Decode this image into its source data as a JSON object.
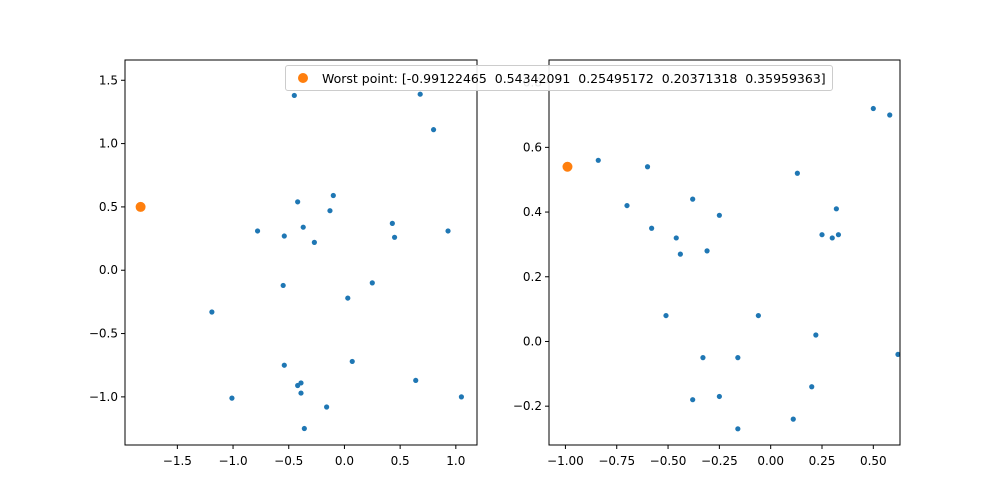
{
  "chart_data": [
    {
      "type": "scatter",
      "title": "",
      "xlabel": "",
      "ylabel": "",
      "xlim": [
        -1.97,
        1.19
      ],
      "ylim": [
        -1.38,
        1.66
      ],
      "xticks": [
        -1.5,
        -1.0,
        -0.5,
        0.0,
        0.5,
        1.0
      ],
      "xtick_labels": [
        "−1.5",
        "−1.0",
        "−0.5",
        "0.0",
        "0.5",
        "1.0"
      ],
      "yticks": [
        -1.0,
        -0.5,
        0.0,
        0.5,
        1.0,
        1.5
      ],
      "ytick_labels": [
        "−1.0",
        "−0.5",
        "0.0",
        "0.5",
        "1.0",
        "1.5"
      ],
      "grid": false,
      "series": [
        {
          "color": "#1f77b4",
          "marker_size": "small",
          "points": [
            [
              -0.45,
              1.38
            ],
            [
              0.68,
              1.39
            ],
            [
              0.8,
              1.11
            ],
            [
              -0.1,
              0.59
            ],
            [
              -0.42,
              0.54
            ],
            [
              -0.13,
              0.47
            ],
            [
              -0.37,
              0.34
            ],
            [
              -0.78,
              0.31
            ],
            [
              -0.54,
              0.27
            ],
            [
              -0.27,
              0.22
            ],
            [
              0.43,
              0.37
            ],
            [
              0.45,
              0.26
            ],
            [
              0.93,
              0.31
            ],
            [
              -0.55,
              -0.12
            ],
            [
              0.03,
              -0.22
            ],
            [
              0.25,
              -0.1
            ],
            [
              -1.19,
              -0.33
            ],
            [
              0.07,
              -0.72
            ],
            [
              -0.54,
              -0.75
            ],
            [
              -0.42,
              -0.91
            ],
            [
              -0.39,
              -0.89
            ],
            [
              -0.39,
              -0.97
            ],
            [
              0.64,
              -0.87
            ],
            [
              -1.01,
              -1.01
            ],
            [
              1.05,
              -1.0
            ],
            [
              -0.16,
              -1.08
            ],
            [
              -0.36,
              -1.25
            ]
          ]
        },
        {
          "color": "#ff7f0e",
          "marker_size": "large",
          "points": [
            [
              -1.83,
              0.5
            ]
          ]
        }
      ]
    },
    {
      "type": "scatter",
      "title": "",
      "xlabel": "",
      "ylabel": "",
      "xlim": [
        -1.08,
        0.63
      ],
      "ylim": [
        -0.32,
        0.87
      ],
      "xticks": [
        -1.0,
        -0.75,
        -0.5,
        -0.25,
        0.0,
        0.25,
        0.5
      ],
      "xtick_labels": [
        "−1.00",
        "−0.75",
        "−0.50",
        "−0.25",
        "0.00",
        "0.25",
        "0.50"
      ],
      "yticks": [
        -0.2,
        0.0,
        0.2,
        0.4,
        0.6,
        0.8
      ],
      "ytick_labels": [
        "−0.2",
        "0.0",
        "0.2",
        "0.4",
        "0.6",
        "0.8"
      ],
      "grid": false,
      "series": [
        {
          "color": "#1f77b4",
          "marker_size": "small",
          "points": [
            [
              0.5,
              0.72
            ],
            [
              0.58,
              0.7
            ],
            [
              -0.84,
              0.56
            ],
            [
              -0.6,
              0.54
            ],
            [
              0.13,
              0.52
            ],
            [
              -0.7,
              0.42
            ],
            [
              -0.38,
              0.44
            ],
            [
              0.32,
              0.41
            ],
            [
              -0.25,
              0.39
            ],
            [
              -0.58,
              0.35
            ],
            [
              -0.46,
              0.32
            ],
            [
              0.25,
              0.33
            ],
            [
              0.3,
              0.32
            ],
            [
              0.33,
              0.33
            ],
            [
              -0.44,
              0.27
            ],
            [
              -0.31,
              0.28
            ],
            [
              -0.51,
              0.08
            ],
            [
              -0.06,
              0.08
            ],
            [
              0.22,
              0.02
            ],
            [
              -0.33,
              -0.05
            ],
            [
              -0.16,
              -0.05
            ],
            [
              0.62,
              -0.04
            ],
            [
              -0.38,
              -0.18
            ],
            [
              -0.25,
              -0.17
            ],
            [
              0.2,
              -0.14
            ],
            [
              -0.16,
              -0.27
            ],
            [
              0.11,
              -0.24
            ]
          ]
        },
        {
          "color": "#ff7f0e",
          "marker_size": "large",
          "points": [
            [
              -0.99,
              0.54
            ]
          ]
        }
      ]
    }
  ],
  "legend": {
    "label": "Worst point: [-0.99122465  0.54342091  0.25495172  0.20371318  0.35959363]",
    "placement": "top-right",
    "color": "#ff7f0e"
  }
}
